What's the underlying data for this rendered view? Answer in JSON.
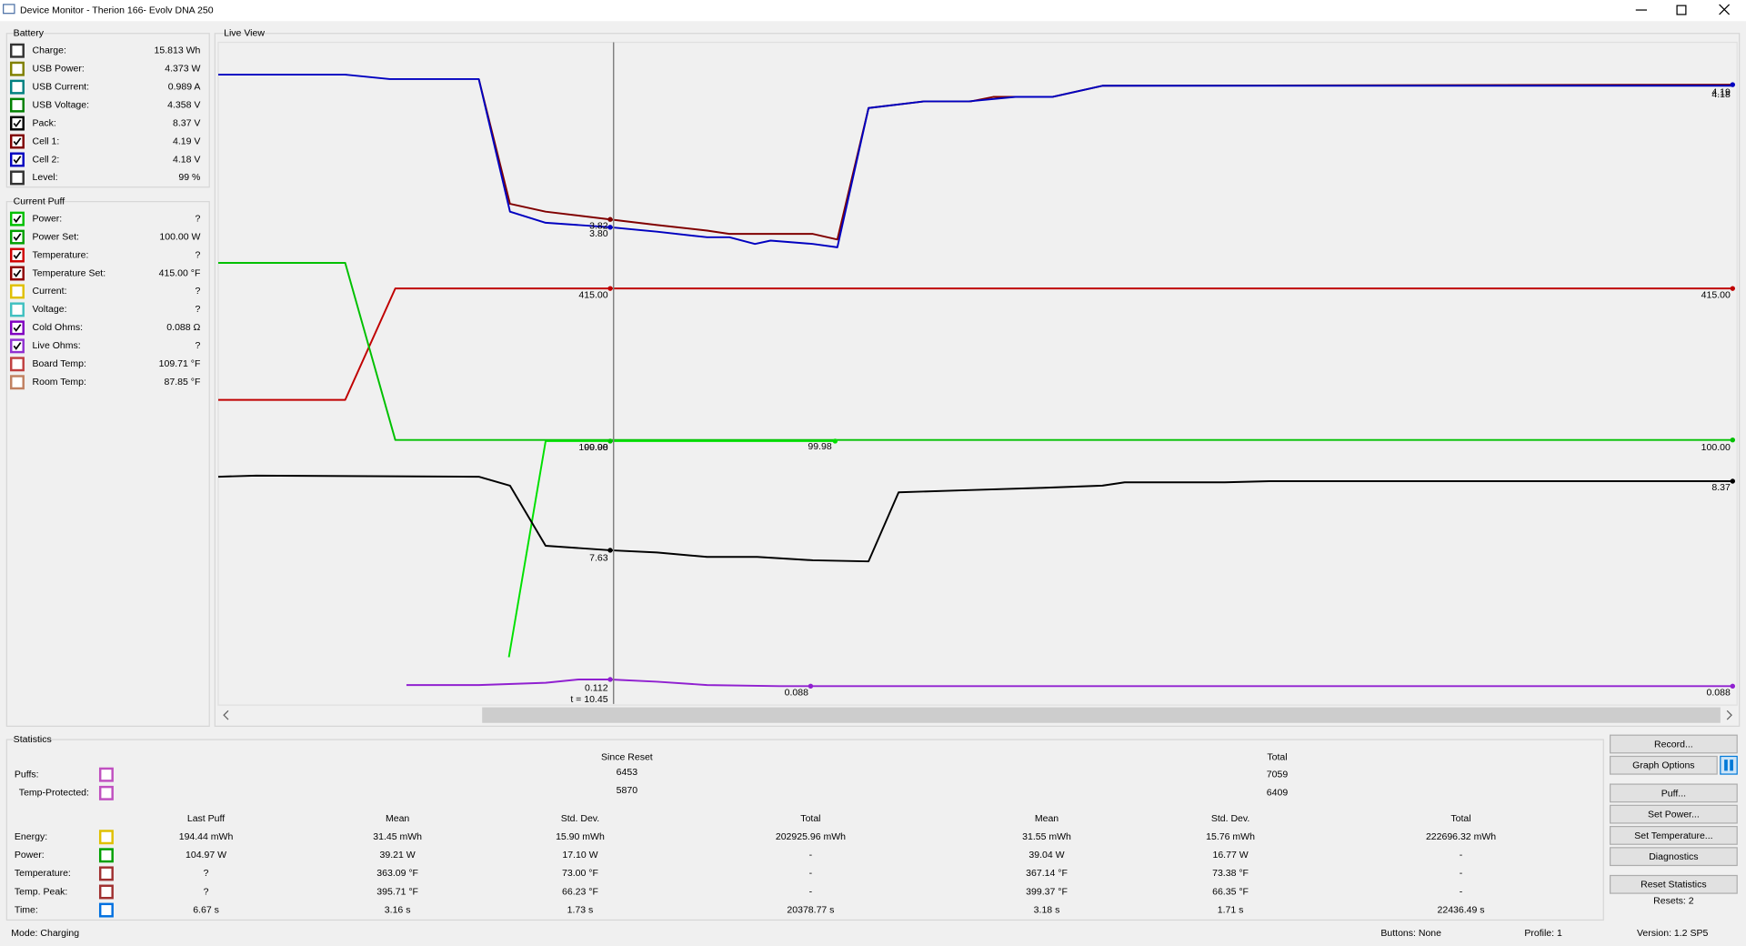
{
  "window": {
    "title": "Device Monitor - Therion 166- Evolv DNA 250"
  },
  "battery": {
    "title": "Battery",
    "items": [
      {
        "label": "Charge:",
        "value": "15.813 Wh",
        "checked": false,
        "color": "#333333"
      },
      {
        "label": "USB Power:",
        "value": "4.373 W",
        "checked": false,
        "color": "#808000"
      },
      {
        "label": "USB Current:",
        "value": "0.989 A",
        "checked": false,
        "color": "#008080"
      },
      {
        "label": "USB Voltage:",
        "value": "4.358 V",
        "checked": false,
        "color": "#008000"
      },
      {
        "label": "Pack:",
        "value": "8.37 V",
        "checked": true,
        "color": "#000000"
      },
      {
        "label": "Cell 1:",
        "value": "4.19 V",
        "checked": true,
        "color": "#800000"
      },
      {
        "label": "Cell 2:",
        "value": "4.18 V",
        "checked": true,
        "color": "#0000c0"
      },
      {
        "label": "Level:",
        "value": "99 %",
        "checked": false,
        "color": "#333333"
      }
    ]
  },
  "current_puff": {
    "title": "Current Puff",
    "items": [
      {
        "label": "Power:",
        "value": "?",
        "checked": true,
        "color": "#00c000"
      },
      {
        "label": "Power Set:",
        "value": "100.00 W",
        "checked": true,
        "color": "#00a000"
      },
      {
        "label": "Temperature:",
        "value": "?",
        "checked": true,
        "color": "#d00000"
      },
      {
        "label": "Temperature Set:",
        "value": "415.00 °F",
        "checked": true,
        "color": "#900000"
      },
      {
        "label": "Current:",
        "value": "?",
        "checked": false,
        "color": "#e0c000"
      },
      {
        "label": "Voltage:",
        "value": "?",
        "checked": false,
        "color": "#40c0c0"
      },
      {
        "label": "Cold Ohms:",
        "value": "0.088 Ω",
        "checked": true,
        "color": "#8000c0"
      },
      {
        "label": "Live Ohms:",
        "value": "?",
        "checked": true,
        "color": "#9030d0"
      },
      {
        "label": "Board Temp:",
        "value": "109.71 °F",
        "checked": false,
        "color": "#c04040"
      },
      {
        "label": "Room Temp:",
        "value": "87.85 °F",
        "checked": false,
        "color": "#c08060"
      }
    ]
  },
  "live_view": {
    "title": "Live View",
    "labels": [
      "3.82",
      "3.80",
      "415.00",
      "100.00",
      "99.98",
      "99.98",
      "100.00",
      "415.00",
      "8.37",
      "4.19",
      "4.18",
      "7.63",
      "0.112",
      "t = 10.45",
      "0.088",
      "0.088"
    ]
  },
  "statistics": {
    "title": "Statistics",
    "since_reset": "Since Reset",
    "total": "Total",
    "counters": [
      {
        "label": "Puffs:",
        "color": "#c050c0",
        "since_reset": "6453",
        "total": "7059"
      },
      {
        "label": "Temp-Protected:",
        "color": "#c050c0",
        "since_reset": "5870",
        "total": "6409"
      }
    ],
    "columns": [
      "Last Puff",
      "Mean",
      "Std. Dev.",
      "Total",
      "Mean",
      "Std. Dev.",
      "Total"
    ],
    "rows": [
      {
        "label": "Energy:",
        "color": "#e0c000",
        "values": [
          "194.44 mWh",
          "31.45 mWh",
          "15.90 mWh",
          "202925.96 mWh",
          "31.55 mWh",
          "15.76 mWh",
          "222696.32 mWh"
        ]
      },
      {
        "label": "Power:",
        "color": "#00a000",
        "values": [
          "104.97 W",
          "39.21 W",
          "17.10 W",
          "-",
          "39.04 W",
          "16.77 W",
          "-"
        ]
      },
      {
        "label": "Temperature:",
        "color": "#a03030",
        "values": [
          "?",
          "363.09 °F",
          "73.00 °F",
          "-",
          "367.14 °F",
          "73.38 °F",
          "-"
        ]
      },
      {
        "label": "Temp. Peak:",
        "color": "#a03030",
        "values": [
          "?",
          "395.71 °F",
          "66.23 °F",
          "-",
          "399.37 °F",
          "66.35 °F",
          "-"
        ]
      },
      {
        "label": "Time:",
        "color": "#0070e0",
        "values": [
          "6.67 s",
          "3.16 s",
          "1.73 s",
          "20378.77 s",
          "3.18 s",
          "1.71 s",
          "22436.49 s"
        ]
      }
    ]
  },
  "buttons": [
    "Record...",
    "Graph Options",
    "Puff...",
    "Set Power...",
    "Set Temperature...",
    "Diagnostics",
    "Reset Statistics"
  ],
  "resets": "Resets: 2",
  "status": {
    "mode": "Mode: Charging",
    "buttons": "Buttons: None",
    "profile": "Profile: 1",
    "version": "Version: 1.2 SP5"
  }
}
